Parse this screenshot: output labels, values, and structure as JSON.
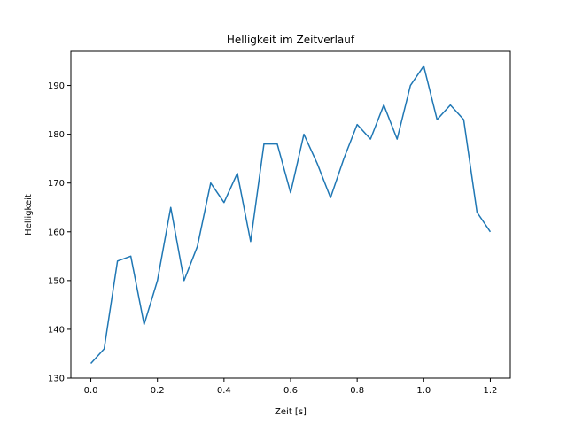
{
  "chart_data": {
    "type": "line",
    "title": "Helligkeit im Zeitverlauf",
    "xlabel": "Zeit [s]",
    "ylabel": "Helligkeit",
    "xlim": [
      -0.06,
      1.26
    ],
    "ylim": [
      130,
      197
    ],
    "xticks": [
      0.0,
      0.2,
      0.4,
      0.6,
      0.8,
      1.0,
      1.2
    ],
    "xtick_labels": [
      "0.0",
      "0.2",
      "0.4",
      "0.6",
      "0.8",
      "1.0",
      "1.2"
    ],
    "yticks": [
      130,
      140,
      150,
      160,
      170,
      180,
      190
    ],
    "ytick_labels": [
      "130",
      "140",
      "150",
      "160",
      "170",
      "180",
      "190"
    ],
    "grid": false,
    "series": [
      {
        "color": "#1f77b4",
        "x": [
          0.0,
          0.04,
          0.08,
          0.12,
          0.16,
          0.2,
          0.24,
          0.28,
          0.32,
          0.36,
          0.4,
          0.44,
          0.48,
          0.52,
          0.56,
          0.6,
          0.64,
          0.68,
          0.72,
          0.76,
          0.8,
          0.84,
          0.88,
          0.92,
          0.96,
          1.0,
          1.04,
          1.08,
          1.12,
          1.16,
          1.2
        ],
        "y": [
          133,
          136,
          154,
          155,
          141,
          150,
          165,
          150,
          157,
          170,
          166,
          172,
          158,
          178,
          178,
          168,
          180,
          174,
          167,
          175,
          182,
          179,
          186,
          179,
          190,
          194,
          183,
          186,
          183,
          164,
          160
        ]
      }
    ]
  }
}
